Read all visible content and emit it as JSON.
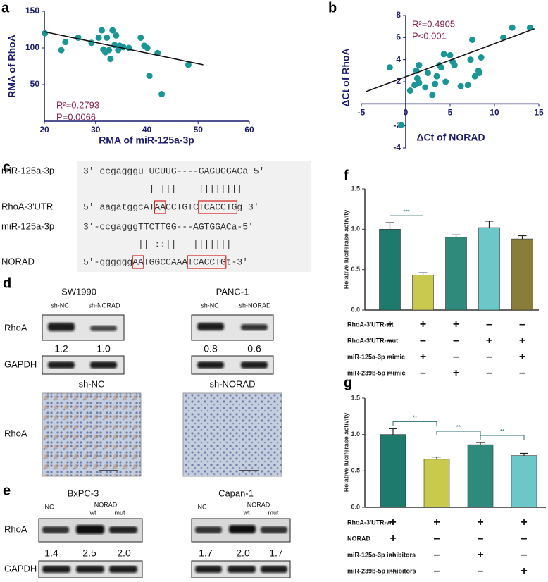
{
  "panels": [
    "a",
    "b",
    "c",
    "d",
    "e",
    "f",
    "g"
  ],
  "chart_data": [
    {
      "type": "scatter",
      "xlabel": "RMA of miR-125a-3p",
      "ylabel": "RMA of RhoA",
      "color": "#1b9696",
      "x": [
        20.1,
        23.3,
        24.1,
        26.6,
        29.2,
        30.6,
        31.2,
        31.5,
        31.9,
        32.2,
        32.6,
        32.9,
        33.3,
        33.7,
        34,
        34.4,
        34.7,
        35.4,
        36.5,
        38.8,
        39.5,
        40.1,
        40.5,
        42.9,
        48.1,
        42.1
      ],
      "y": [
        120,
        97,
        108,
        114,
        107,
        114,
        124,
        98,
        94,
        114,
        97,
        85,
        124,
        104,
        117,
        97,
        103,
        101,
        100,
        114,
        103,
        100,
        62,
        37,
        77,
        93
      ],
      "xlim": [
        20,
        60
      ],
      "xticks": [
        20,
        30,
        40,
        50,
        60
      ],
      "ylim": [
        0,
        150
      ],
      "yticks": [
        50,
        100,
        150
      ],
      "trendline": {
        "x": [
          20,
          51
        ],
        "y": [
          122,
          77
        ]
      },
      "annotations": [
        "R²=0.2793",
        "P=0.0066"
      ]
    },
    {
      "type": "scatter",
      "xlabel": "ΔCt of NORAD",
      "ylabel": "ΔCt of RhoA",
      "color": "#1b9696",
      "x": [
        -1.8,
        -0.5,
        0.5,
        1,
        1.2,
        1.3,
        1.5,
        1.5,
        2.2,
        2.5,
        3,
        3.3,
        3.5,
        3.8,
        4,
        4.3,
        4.5,
        5,
        5.3,
        5.5,
        6.2,
        7,
        7.3,
        7.5,
        7.8,
        8.2,
        8.5,
        8.3,
        11,
        12,
        14
      ],
      "y": [
        3.3,
        -1.9,
        1.2,
        1.7,
        3,
        2.3,
        1.9,
        3.5,
        1.5,
        2.8,
        0.8,
        1.8,
        2.5,
        3.5,
        3.3,
        4.5,
        2,
        4.4,
        3.8,
        3.5,
        1.6,
        1.7,
        4,
        5.8,
        2.5,
        3,
        4.2,
        2.8,
        6,
        6.9,
        6.9
      ],
      "xlim": [
        -5,
        15
      ],
      "xticks": [
        -5,
        0,
        5,
        10,
        15
      ],
      "ylim": [
        -4,
        8
      ],
      "yticks": [
        -4,
        -2,
        2,
        4,
        6,
        8
      ],
      "trendline": {
        "x": [
          -4.5,
          14.5
        ],
        "y": [
          1.1,
          6.8
        ]
      },
      "annotations": [
        "R²=0.4905",
        "P<0.001"
      ]
    },
    {
      "type": "bar",
      "ylabel": "Relative luciferase activity",
      "categories": [
        null,
        null,
        null,
        null,
        null
      ],
      "values": [
        1.0,
        0.43,
        0.9,
        1.02,
        0.88
      ],
      "errors": [
        0.08,
        0.03,
        0.03,
        0.08,
        0.04
      ],
      "colors": [
        "#1f7a6e",
        "#c9c94e",
        "#2f8a7c",
        "#6cc8c8",
        "#8a7c3a"
      ],
      "ylim": [
        0,
        1.5
      ],
      "yticks": [
        {
          "value": 0,
          "label": "0.0"
        },
        0.5,
        {
          "value": 1,
          "label": "1.0"
        },
        1.5
      ],
      "significance": [
        "***"
      ],
      "conditions": [
        {
          "label": "RhoA-3'UTR-wt",
          "marks": [
            "+",
            "+",
            "+",
            "–",
            "–"
          ]
        },
        {
          "label": "RhoA-3'UTR-mut",
          "marks": [
            "–",
            "–",
            "–",
            "+",
            "+"
          ]
        },
        {
          "label": "miR-125a-3p mimic",
          "marks": [
            "–",
            "+",
            "–",
            "–",
            "+"
          ]
        },
        {
          "label": "miR-239b-5p mimic",
          "marks": [
            "–",
            "–",
            "+",
            "–",
            "–"
          ]
        }
      ]
    },
    {
      "type": "bar",
      "ylabel": "Relative luciferase activity",
      "categories": [
        null,
        null,
        null,
        null
      ],
      "values": [
        1.0,
        0.66,
        0.86,
        0.71
      ],
      "errors": [
        0.08,
        0.03,
        0.03,
        0.03
      ],
      "colors": [
        "#1f7a6e",
        "#c9c94e",
        "#2f8a7c",
        "#6cc8c8"
      ],
      "ylim": [
        0,
        1.5
      ],
      "yticks": [
        {
          "value": 0,
          "label": "0.0"
        },
        0.5,
        {
          "value": 1,
          "label": "1.0"
        },
        1.5
      ],
      "significance": [
        "**",
        "**",
        "**"
      ],
      "conditions": [
        {
          "label": "RhoA-3'UTR-wt",
          "marks": [
            "+",
            "+",
            "+",
            "+"
          ]
        },
        {
          "label": "NORAD",
          "marks": [
            "+",
            "–",
            "–",
            "–"
          ]
        },
        {
          "label": "miR-125a-3p inhibitors",
          "marks": [
            "–",
            "–",
            "+",
            "–"
          ]
        },
        {
          "label": "miR-239b-5p inhibitors",
          "marks": [
            "–",
            "–",
            "–",
            "+"
          ]
        }
      ]
    }
  ],
  "sequence": {
    "labels": [
      "miR-125a-3p",
      "RhoA-3'UTR",
      "miR-125a-3p",
      "NORAD"
    ],
    "lines": [
      "3' ccgagggu UCUUG----GAGUGGACa 5'",
      "| |||    ||||||||",
      "5' aagatggcATAACCTGTCTCACCTGg 3'",
      "3'-ccgagggTTCTTGG---AGTGGACa-5'",
      "|| ::||   |||||||",
      "5'-ggggggAATGGCCAAATCACCTGt-3'"
    ]
  },
  "blot_d": {
    "rows": [
      "RhoA",
      "GAPDH"
    ],
    "groups": [
      {
        "name": "SW1990",
        "lanes": [
          "sh-NC",
          "sh-NORAD"
        ],
        "ratios": [
          "1.2",
          "1.0"
        ]
      },
      {
        "name": "PANC-1",
        "lanes": [
          "sh-NC",
          "sh-NORAD"
        ],
        "ratios": [
          "0.8",
          "0.6"
        ]
      }
    ]
  },
  "ihc": {
    "columns": [
      "sh-NC",
      "sh-NORAD"
    ],
    "row": "RhoA"
  },
  "blot_e": {
    "rows": [
      "RhoA",
      "GAPDH"
    ],
    "groups": [
      {
        "name": "BxPC-3",
        "lanes": [
          "NC",
          "NORAD"
        ],
        "sublanes": [
          "wt",
          "mut"
        ],
        "ratios": [
          "1.4",
          "2.5",
          "2.0"
        ]
      },
      {
        "name": "Capan-1",
        "lanes": [
          "NC",
          "NORAD"
        ],
        "sublanes": [
          "wt",
          "mut"
        ],
        "ratios": [
          "1.7",
          "2.0",
          "1.7"
        ]
      }
    ]
  }
}
